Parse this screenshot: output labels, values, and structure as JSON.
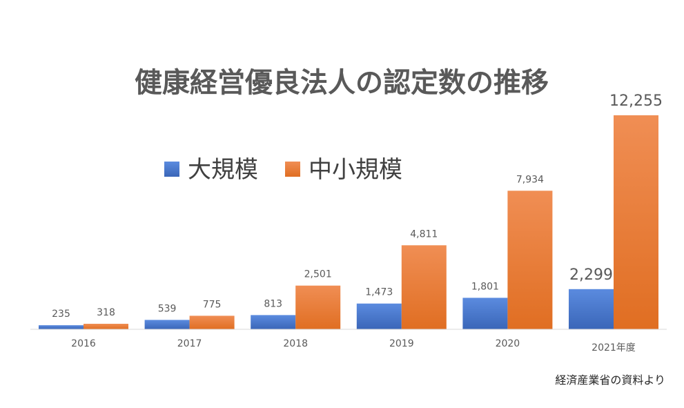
{
  "chart_data": {
    "type": "bar",
    "title": "健康経営優良法人の認定数の推移",
    "categories": [
      "2016",
      "2017",
      "2018",
      "2019",
      "2020",
      "2021年度"
    ],
    "series": [
      {
        "name": "大規模",
        "color": "#4472C4",
        "values": [
          235,
          539,
          813,
          1473,
          1801,
          2299
        ],
        "labels": [
          "235",
          "539",
          "813",
          "1,473",
          "1,801",
          "2,299"
        ]
      },
      {
        "name": "中小規模",
        "color": "#ED7D31",
        "values": [
          318,
          775,
          2501,
          4811,
          7934,
          12255
        ],
        "labels": [
          "318",
          "775",
          "2,501",
          "4,811",
          "7,934",
          "12,255"
        ]
      }
    ],
    "legend_position": "top-left",
    "grid": false,
    "source_note": "経済産業省の資料より"
  }
}
